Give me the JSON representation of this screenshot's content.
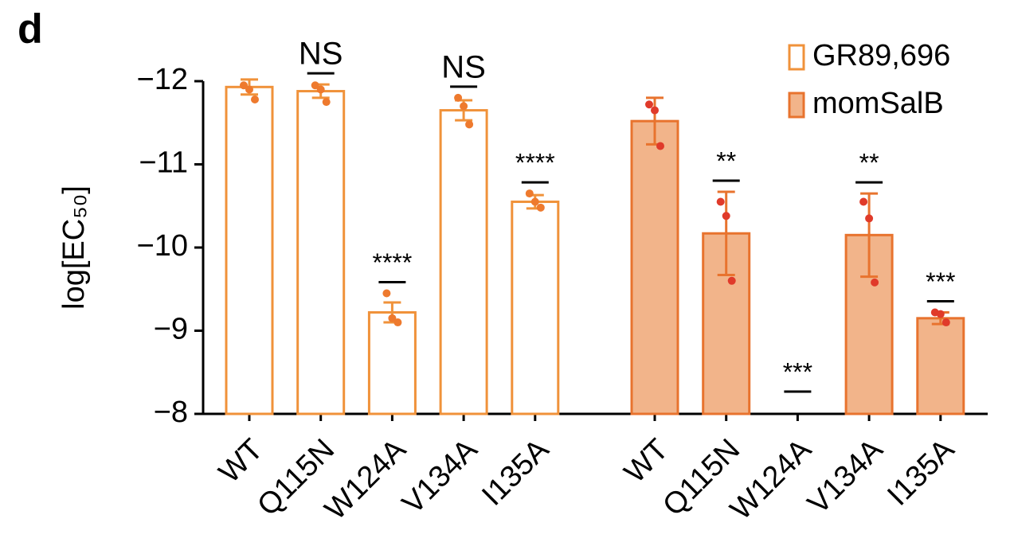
{
  "panel_label": "d",
  "chart_data": {
    "type": "bar",
    "ylabel": "log[EC₅₀]",
    "categories": [
      "WT",
      "Q115N",
      "W124A",
      "V134A",
      "I135A"
    ],
    "ylim": [
      -8,
      -12
    ],
    "yticks": [
      {
        "value": -12,
        "label": "−12"
      },
      {
        "value": -11,
        "label": "−11"
      },
      {
        "value": -10,
        "label": "−10"
      },
      {
        "value": -9,
        "label": "−9"
      },
      {
        "value": -8,
        "label": "−8"
      }
    ],
    "legend": "top-right",
    "series": [
      {
        "name": "GR89,696",
        "fill": "#ffffff",
        "color": "#f0923a",
        "point_color": "#ee7a2e",
        "values": [
          -11.93,
          -11.88,
          -9.22,
          -11.65,
          -10.55
        ],
        "errors": [
          0.09,
          0.08,
          0.12,
          0.12,
          0.08
        ],
        "points": [
          [
            -11.95,
            -11.9,
            -11.78
          ],
          [
            -11.95,
            -11.9,
            -11.75
          ],
          [
            -9.45,
            -9.15,
            -9.1
          ],
          [
            -11.8,
            -11.7,
            -11.48
          ],
          [
            -10.65,
            -10.55,
            -10.48
          ]
        ],
        "significance": [
          null,
          "NS",
          "****",
          "NS",
          "****"
        ]
      },
      {
        "name": "momSalB",
        "fill": "#f2b48a",
        "color": "#e8732e",
        "point_color": "#e03a2a",
        "values": [
          -11.52,
          -10.17,
          null,
          -10.15,
          -9.15
        ],
        "errors": [
          0.28,
          0.5,
          null,
          0.5,
          0.07
        ],
        "points": [
          [
            -11.72,
            -11.65,
            -11.22
          ],
          [
            -10.55,
            -10.38,
            -9.6
          ],
          null,
          [
            -10.55,
            -10.35,
            -9.58
          ],
          [
            -9.22,
            -9.2,
            -9.1
          ]
        ],
        "significance": [
          null,
          "**",
          "***",
          "**",
          "***"
        ]
      }
    ]
  }
}
